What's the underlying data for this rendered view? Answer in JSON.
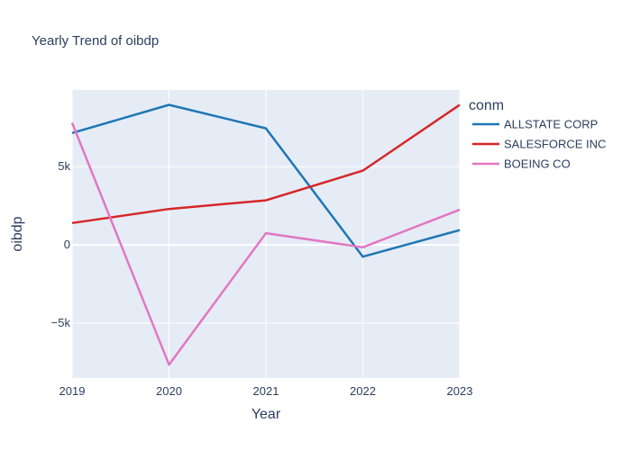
{
  "chart_data": {
    "type": "line",
    "title": "Yearly Trend of oibdp",
    "xlabel": "Year",
    "ylabel": "oibdp",
    "x": [
      2019,
      2020,
      2021,
      2022,
      2023
    ],
    "xlim": [
      2019,
      2023
    ],
    "ylim": [
      -8500,
      9900
    ],
    "y_ticks": [
      -5000,
      0,
      5000
    ],
    "y_tick_labels": [
      "−5k",
      "0",
      "5k"
    ],
    "grid": true,
    "legend": {
      "title": "conm",
      "placement": "right"
    },
    "series": [
      {
        "name": "ALLSTATE CORP",
        "color": "#1f77b4",
        "values": [
          7150,
          8950,
          7450,
          -750,
          950
        ]
      },
      {
        "name": "SALESFORCE INC",
        "color": "#d62728",
        "values": [
          1400,
          2300,
          2850,
          4750,
          8950
        ]
      },
      {
        "name": "BOEING CO",
        "color": "#e377c2",
        "values": [
          7800,
          -7650,
          750,
          -150,
          2250
        ]
      }
    ]
  },
  "colors": {
    "plot_bg": "#e5ecf6",
    "grid": "#ffffff",
    "text": "#2a3f5f"
  }
}
